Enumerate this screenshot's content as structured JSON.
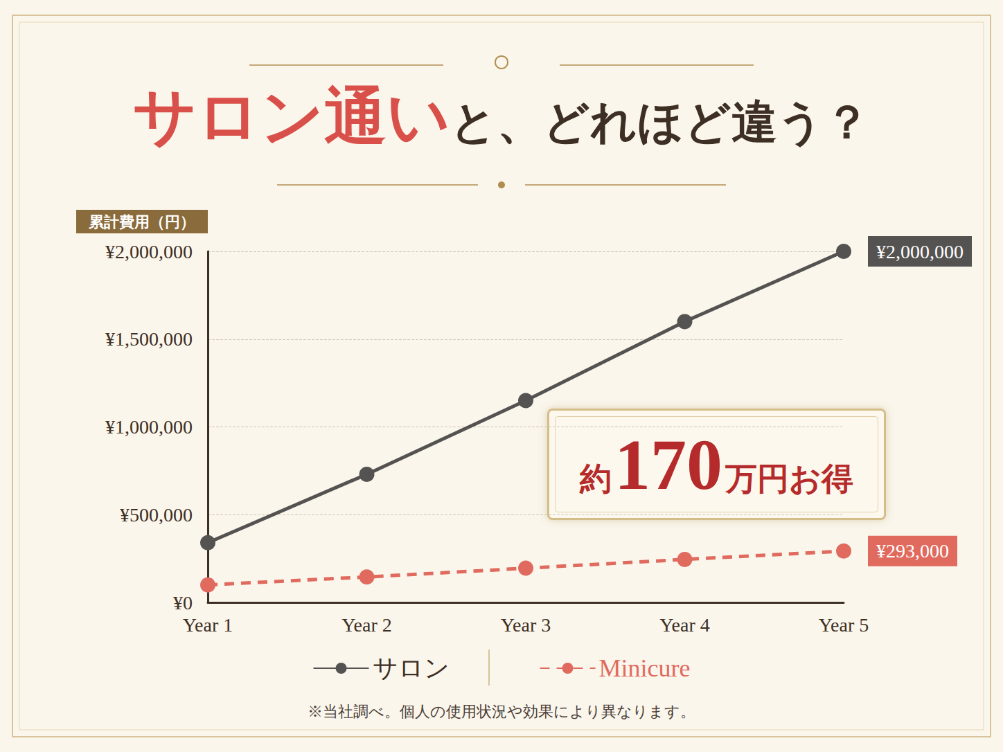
{
  "chart_data": {
    "type": "line",
    "title": "サロン通いと、どれほど違う？",
    "y_label": "累計費用（円）",
    "categories": [
      "Year 1",
      "Year 2",
      "Year 3",
      "Year 4",
      "Year 5"
    ],
    "series": [
      {
        "name": "サロン",
        "color": "#555352",
        "marker": "circle",
        "line_style": "solid",
        "values": [
          340000,
          730000,
          1150000,
          1600000,
          2000000
        ],
        "value_labels": [
          null,
          null,
          null,
          null,
          "¥2,000,000"
        ]
      },
      {
        "name": "Minicure",
        "color": "#e06a5e",
        "marker": "circle",
        "line_style": "dashed",
        "values": [
          100000,
          145000,
          195000,
          245000,
          293000
        ],
        "value_labels": [
          null,
          null,
          null,
          null,
          "¥293,000"
        ]
      }
    ],
    "ylim": [
      0,
      2000000
    ],
    "yticks": [
      {
        "value": 0,
        "label": "¥0"
      },
      {
        "value": 500000,
        "label": "¥500,000"
      },
      {
        "value": 1000000,
        "label": "¥1,000,000"
      },
      {
        "value": 1500000,
        "label": "¥1,500,000"
      },
      {
        "value": 2000000,
        "label": "¥2,000,000"
      }
    ],
    "grid": true,
    "legend": "bottom",
    "data_labels": true,
    "annotations": [
      {
        "text": "約170万円お得"
      }
    ],
    "note": "※当社調べ。個人の使用状況や効果により異なります。"
  }
}
